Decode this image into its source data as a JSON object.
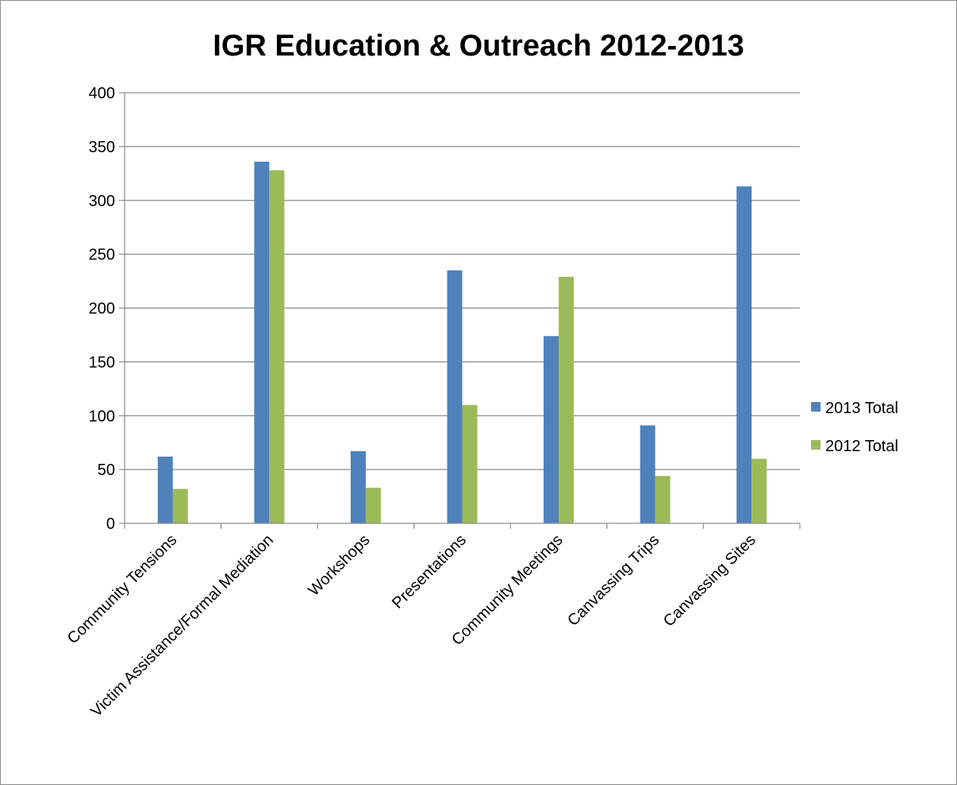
{
  "chart_data": {
    "type": "bar",
    "title": "IGR Education  & Outreach 2012-2013",
    "categories": [
      "Community Tensions",
      "Victim Assistance/Formal Mediation",
      "Workshops",
      "Presentations",
      "Community Meetings",
      "Canvassing Trips",
      "Canvassing Sites"
    ],
    "series": [
      {
        "name": "2013 Total",
        "color": "#4f81bd",
        "values": [
          62,
          336,
          67,
          235,
          174,
          91,
          313
        ]
      },
      {
        "name": "2012 Total",
        "color": "#9bbb59",
        "values": [
          32,
          328,
          33,
          110,
          229,
          44,
          60
        ]
      }
    ],
    "ylim": [
      0,
      400
    ],
    "yticks": [
      0,
      50,
      100,
      150,
      200,
      250,
      300,
      350,
      400
    ],
    "grid": true,
    "legend": "right"
  }
}
